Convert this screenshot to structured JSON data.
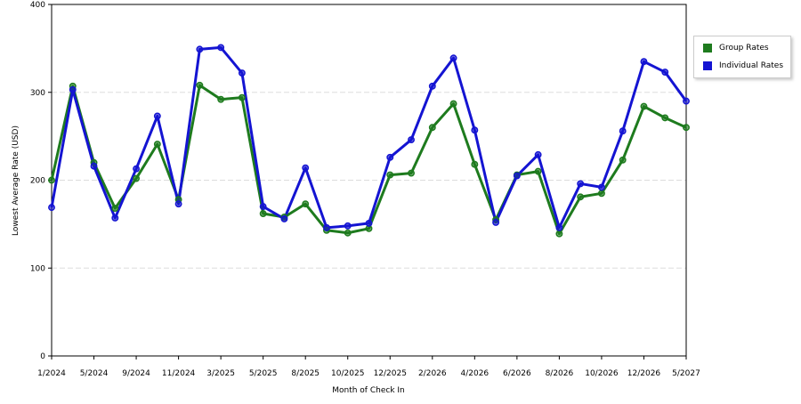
{
  "chart_data": {
    "type": "line",
    "x_label": "Month of Check In",
    "y_label": "Lowest Average Rate (USD)",
    "categories": [
      "1/2024",
      null,
      "5/2024",
      null,
      "9/2024",
      null,
      "11/2024",
      null,
      "3/2025",
      null,
      "5/2025",
      null,
      "8/2025",
      null,
      "10/2025",
      null,
      "12/2025",
      null,
      "2/2026",
      null,
      "4/2026",
      null,
      "6/2026",
      null,
      "8/2026",
      null,
      "10/2026",
      null,
      "12/2026",
      null,
      "5/2027"
    ],
    "series": [
      {
        "name": "Group Rates",
        "color": "#1e7b1e",
        "values": [
          200,
          307,
          220,
          168,
          202,
          241,
          178,
          308,
          292,
          294,
          162,
          158,
          173,
          143,
          140,
          145,
          206,
          208,
          260,
          287,
          218,
          155,
          206,
          210,
          139,
          181,
          185,
          223,
          284,
          271,
          260
        ]
      },
      {
        "name": "Individual Rates",
        "color": "#1414d2",
        "values": [
          169,
          303,
          216,
          157,
          213,
          273,
          173,
          349,
          351,
          322,
          170,
          156,
          214,
          146,
          148,
          151,
          226,
          246,
          307,
          339,
          257,
          152,
          205,
          229,
          146,
          196,
          192,
          256,
          335,
          323,
          290
        ]
      }
    ],
    "ylim": [
      0,
      400
    ],
    "yticks": [
      0,
      100,
      200,
      300,
      400
    ],
    "grid": true,
    "legend": "right"
  }
}
